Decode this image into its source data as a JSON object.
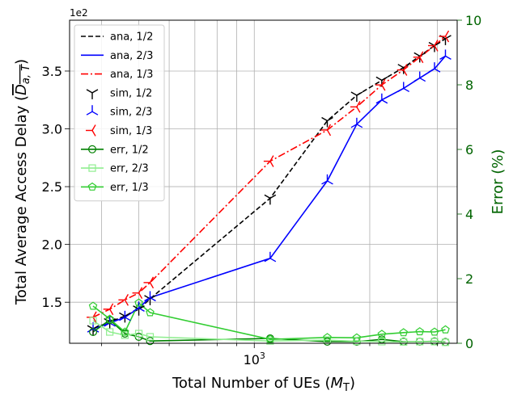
{
  "chart_data": {
    "type": "line",
    "x_scale": "log",
    "xlim": [
      330,
      3380
    ],
    "xlabel_main": "Total Number of UEs (",
    "xlabel_var": "M",
    "xlabel_sub": "T",
    "xlabel_end": ")",
    "x_tick_label_base": "10",
    "x_tick_label_exp": "3",
    "ylabel_left_main": "Total Average Access Delay (",
    "ylabel_left_var": "D",
    "ylabel_left_sub": "a, T",
    "ylabel_left_end": ")",
    "ylim_left": [
      1.145,
      3.94
    ],
    "y_offset_label": "1e2",
    "y_ticks_left": [
      "1.5",
      "2.0",
      "2.5",
      "3.0",
      "3.5"
    ],
    "ylabel_right": "Error (%)",
    "ylim_right": [
      0,
      10
    ],
    "y_ticks_right": [
      "0",
      "2",
      "4",
      "6",
      "8",
      "10"
    ],
    "right_axis_color": "#006400",
    "grid": true,
    "legend_position": "upper-left",
    "series": [
      {
        "name": "ana, 1/2",
        "axis": "left",
        "style": "dashed",
        "color": "#000000",
        "marker": "none",
        "x": [
          380,
          420,
          460,
          500,
          535,
          1100,
          1550,
          1850,
          2150,
          2450,
          2700,
          2950,
          3150
        ],
        "y": [
          1.27,
          1.33,
          1.38,
          1.44,
          1.53,
          2.4,
          3.07,
          3.29,
          3.42,
          3.53,
          3.63,
          3.72,
          3.78
        ]
      },
      {
        "name": "ana, 2/3",
        "axis": "left",
        "style": "solid",
        "color": "#0000ff",
        "marker": "none",
        "x": [
          380,
          420,
          460,
          500,
          535,
          1100,
          1550,
          1850,
          2150,
          2450,
          2700,
          2950,
          3150
        ],
        "y": [
          1.27,
          1.32,
          1.37,
          1.45,
          1.54,
          1.88,
          2.55,
          3.04,
          3.25,
          3.35,
          3.44,
          3.52,
          3.63
        ]
      },
      {
        "name": "ana, 1/3",
        "axis": "left",
        "style": "dashdot",
        "color": "#ff0000",
        "marker": "none",
        "x": [
          380,
          420,
          460,
          500,
          535,
          1100,
          1550,
          1850,
          2150,
          2450,
          2700,
          2950,
          3150
        ],
        "y": [
          1.37,
          1.44,
          1.52,
          1.58,
          1.67,
          2.72,
          2.99,
          3.19,
          3.38,
          3.51,
          3.62,
          3.72,
          3.8
        ]
      },
      {
        "name": "sim, 1/2",
        "axis": "left",
        "style": "none",
        "color": "#000000",
        "marker": "tri_down",
        "x": [
          380,
          420,
          460,
          500,
          535,
          1100,
          1550,
          1850,
          2150,
          2450,
          2700,
          2950,
          3150
        ],
        "y": [
          1.27,
          1.33,
          1.38,
          1.44,
          1.53,
          2.4,
          3.07,
          3.29,
          3.42,
          3.53,
          3.63,
          3.72,
          3.78
        ]
      },
      {
        "name": "sim, 2/3",
        "axis": "left",
        "style": "none",
        "color": "#0000ff",
        "marker": "tri_up",
        "x": [
          380,
          420,
          460,
          500,
          535,
          1100,
          1550,
          1850,
          2150,
          2450,
          2700,
          2950,
          3150
        ],
        "y": [
          1.27,
          1.32,
          1.37,
          1.45,
          1.54,
          1.88,
          2.55,
          3.04,
          3.25,
          3.35,
          3.44,
          3.52,
          3.63
        ]
      },
      {
        "name": "sim, 1/3",
        "axis": "left",
        "style": "none",
        "color": "#ff0000",
        "marker": "tri_left",
        "x": [
          380,
          420,
          460,
          500,
          535,
          1100,
          1550,
          1850,
          2150,
          2450,
          2700,
          2950,
          3150
        ],
        "y": [
          1.37,
          1.44,
          1.52,
          1.58,
          1.67,
          2.72,
          2.99,
          3.19,
          3.38,
          3.51,
          3.62,
          3.72,
          3.8
        ]
      },
      {
        "name": "err, 1/2",
        "axis": "right",
        "style": "solid",
        "color": "#008000",
        "marker": "circle",
        "x": [
          380,
          420,
          460,
          500,
          535,
          1100,
          1550,
          1850,
          2150,
          2450,
          2700,
          2950,
          3150
        ],
        "y": [
          0.35,
          0.72,
          0.3,
          0.2,
          0.07,
          0.15,
          0.05,
          0.05,
          0.12,
          0.05,
          0.05,
          0.06,
          0.04
        ]
      },
      {
        "name": "err, 2/3",
        "axis": "right",
        "style": "solid",
        "color": "#90ee90",
        "marker": "square",
        "x": [
          380,
          420,
          460,
          500,
          535,
          1100,
          1550,
          1850,
          2150,
          2450,
          2700,
          2950,
          3150
        ],
        "y": [
          0.7,
          0.35,
          0.25,
          0.3,
          0.2,
          0.07,
          0.1,
          0.06,
          0.05,
          0.04,
          0.05,
          0.05,
          0.03
        ]
      },
      {
        "name": "err, 1/3",
        "axis": "right",
        "style": "solid",
        "color": "#32cd32",
        "marker": "pentagon",
        "x": [
          380,
          420,
          460,
          500,
          535,
          1100,
          1550,
          1850,
          2150,
          2450,
          2700,
          2950,
          3150
        ],
        "y": [
          1.15,
          0.75,
          0.35,
          1.25,
          0.95,
          0.12,
          0.18,
          0.17,
          0.28,
          0.33,
          0.36,
          0.35,
          0.42
        ]
      }
    ]
  }
}
